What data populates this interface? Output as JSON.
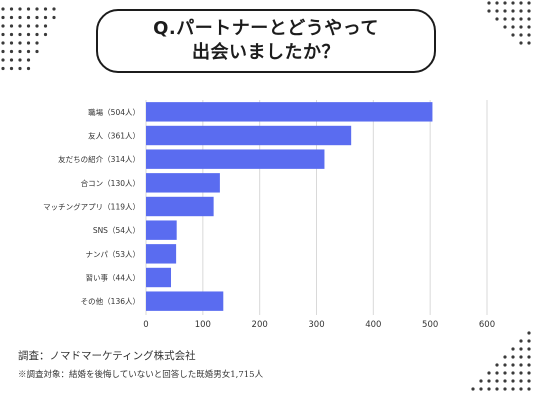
{
  "header": {
    "title_line1": "Q.パートナーとどうやって",
    "title_line2": "出会いましたか？"
  },
  "footer": {
    "company": "調査：ノマドマーケティング株式会社",
    "note": "※調査対象：結婚を後悔していないと回答した既婚男女1,715人"
  },
  "colors": {
    "bar": "#5a6cf0",
    "grid": "#d9d9d9",
    "dots": "#3a3a3a"
  },
  "chart_data": {
    "type": "bar",
    "orientation": "horizontal",
    "categories": [
      "職場（504人）",
      "友人（361人）",
      "友だちの紹介（314人）",
      "合コン（130人）",
      "マッチングアプリ（119人）",
      "SNS（54人）",
      "ナンパ（53人）",
      "習い事（44人）",
      "その他（136人）"
    ],
    "values": [
      504,
      361,
      314,
      130,
      119,
      54,
      53,
      44,
      136
    ],
    "xlim": [
      0,
      600
    ],
    "xticks": [
      "0",
      "100",
      "200",
      "300",
      "400",
      "500",
      "600"
    ],
    "grid": true,
    "title": "",
    "xlabel": "",
    "ylabel": ""
  }
}
